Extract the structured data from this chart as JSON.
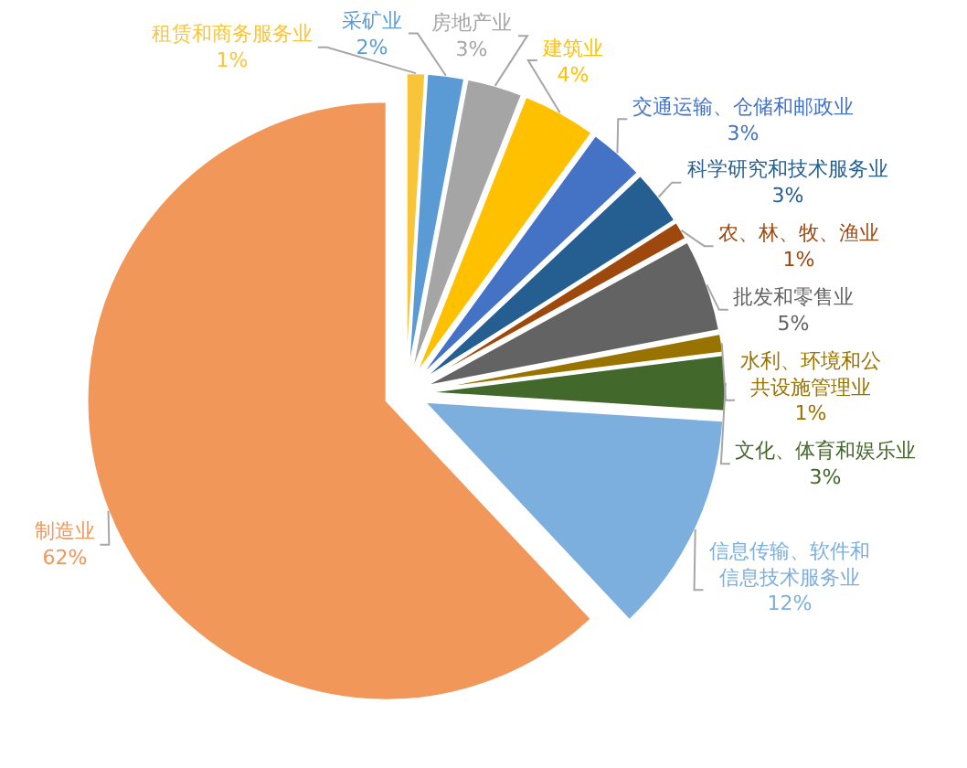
{
  "chart_data": {
    "type": "pie",
    "categories": [
      "租赁和商务服务业",
      "采矿业",
      "房地产业",
      "建筑业",
      "交通运输、仓储和邮政业",
      "科学研究和技术服务业",
      "农、林、牧、渔业",
      "批发和零售业",
      "水利、环境和公共设施管理业",
      "文化、体育和娱乐业",
      "信息传输、软件和信息技术服务业",
      "制造业"
    ],
    "values": [
      1,
      2,
      3,
      4,
      3,
      3,
      1,
      5,
      1,
      3,
      12,
      62
    ],
    "value_labels": [
      "1%",
      "2%",
      "3%",
      "4%",
      "3%",
      "3%",
      "1%",
      "5%",
      "1%",
      "3%",
      "12%",
      "62%"
    ],
    "colors": [
      "#f8c53a",
      "#5b9bd5",
      "#a5a5a5",
      "#ffc000",
      "#4472c4",
      "#255e91",
      "#9e480e",
      "#636363",
      "#997300",
      "#43682b",
      "#7cafdd",
      "#f1975a"
    ],
    "legend": false
  }
}
